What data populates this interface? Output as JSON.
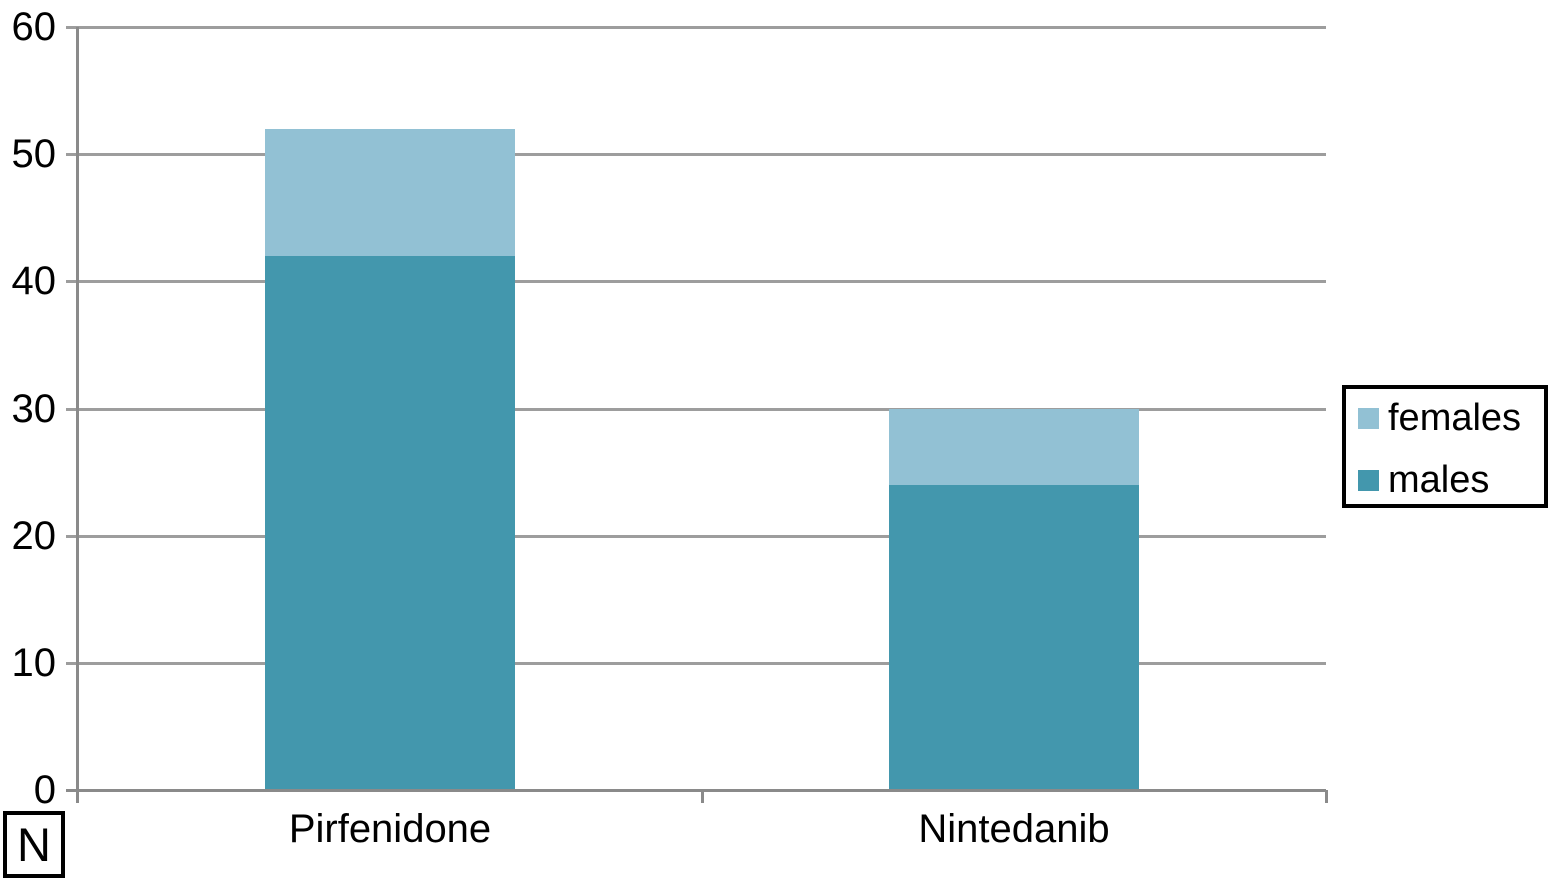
{
  "chart_data": {
    "type": "bar",
    "stacked": true,
    "categories": [
      "Pirfenidone",
      "Nintedanib"
    ],
    "series": [
      {
        "name": "males",
        "color": "#4397ad",
        "values": [
          42,
          24
        ]
      },
      {
        "name": "females",
        "color": "#92c1d4",
        "values": [
          10,
          6
        ]
      }
    ],
    "stack_order": "bottom-to-top",
    "totals": [
      52,
      30
    ],
    "title": "",
    "xlabel": "N",
    "ylabel": "",
    "ylim": [
      0,
      60
    ],
    "yticks": [
      0,
      10,
      20,
      30,
      40,
      50,
      60
    ],
    "grid": true,
    "legend_position": "right"
  },
  "legend": {
    "items": [
      {
        "label": "females",
        "color": "#92c1d4"
      },
      {
        "label": "males",
        "color": "#4397ad"
      }
    ]
  },
  "n_box_label": "N",
  "colors": {
    "axis": "#8a8a8a",
    "gridline": "#9d9d9d",
    "background": "#ffffff",
    "legend_border": "#000000",
    "text": "#000000"
  }
}
